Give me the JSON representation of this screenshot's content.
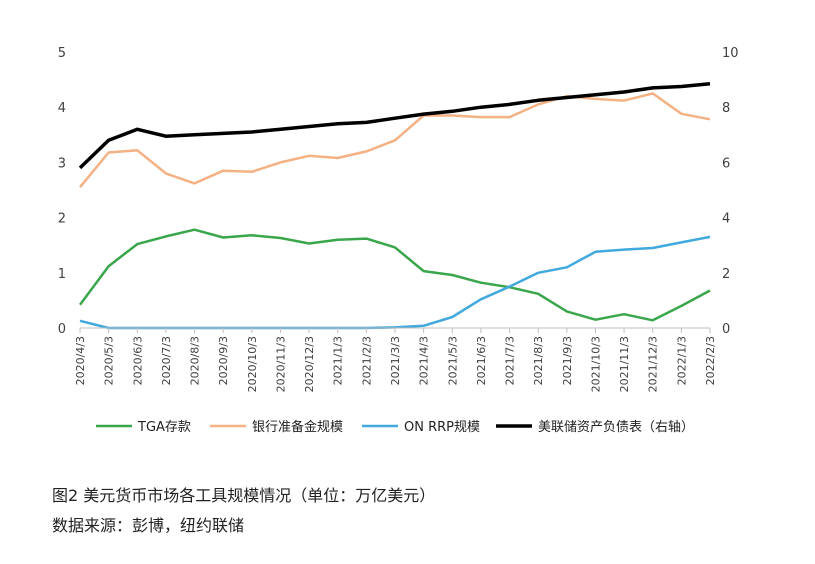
{
  "caption": {
    "title": "图2 美元货币市场各工具规模情况（单位：万亿美元）",
    "source": "数据来源：彭博，纽约联储"
  },
  "chart_data": {
    "type": "line",
    "x": [
      "2020/4/3",
      "2020/5/3",
      "2020/6/3",
      "2020/7/3",
      "2020/8/3",
      "2020/9/3",
      "2020/10/3",
      "2020/11/3",
      "2020/12/3",
      "2021/1/3",
      "2021/2/3",
      "2021/3/3",
      "2021/4/3",
      "2021/5/3",
      "2021/6/3",
      "2021/7/3",
      "2021/8/3",
      "2021/9/3",
      "2021/10/3",
      "2021/11/3",
      "2021/12/3",
      "2022/1/3",
      "2022/2/3"
    ],
    "y_left": {
      "ylim": [
        0,
        5
      ],
      "ticks": [
        0,
        1,
        2,
        3,
        4,
        5
      ]
    },
    "y_right": {
      "ylim": [
        0,
        10
      ],
      "ticks": [
        0,
        2,
        4,
        6,
        8,
        10
      ]
    },
    "legend_position": "bottom",
    "grid": false,
    "series": [
      {
        "name": "TGA存款",
        "axis": "left",
        "color": "#3aa64b",
        "values": [
          0.42,
          1.12,
          1.52,
          1.66,
          1.78,
          1.64,
          1.68,
          1.63,
          1.53,
          1.6,
          1.62,
          1.46,
          1.03,
          0.96,
          0.82,
          0.74,
          0.62,
          0.3,
          0.15,
          0.25,
          0.14,
          0.4,
          0.68
        ]
      },
      {
        "name": "银行准备金规模",
        "axis": "left",
        "color": "#f4b183",
        "values": [
          2.55,
          3.18,
          3.22,
          2.8,
          2.62,
          2.85,
          2.83,
          3.0,
          3.12,
          3.08,
          3.2,
          3.4,
          3.85,
          3.85,
          3.82,
          3.82,
          4.05,
          4.2,
          4.15,
          4.12,
          4.25,
          3.88,
          3.78
        ]
      },
      {
        "name": "ON RRP规模",
        "axis": "left",
        "color": "#41a9de",
        "values": [
          0.13,
          0.0,
          0.0,
          0.0,
          0.0,
          0.0,
          0.0,
          0.0,
          0.0,
          0.0,
          0.0,
          0.01,
          0.04,
          0.2,
          0.52,
          0.75,
          1.0,
          1.1,
          1.38,
          1.42,
          1.45,
          1.55,
          1.65
        ]
      },
      {
        "name": "美联储资产负债表（右轴）",
        "axis": "right",
        "color": "#000000",
        "values": [
          5.8,
          6.8,
          7.2,
          6.95,
          7.0,
          7.05,
          7.1,
          7.2,
          7.3,
          7.4,
          7.45,
          7.6,
          7.75,
          7.85,
          8.0,
          8.1,
          8.25,
          8.35,
          8.45,
          8.55,
          8.7,
          8.75,
          8.85
        ]
      }
    ]
  }
}
